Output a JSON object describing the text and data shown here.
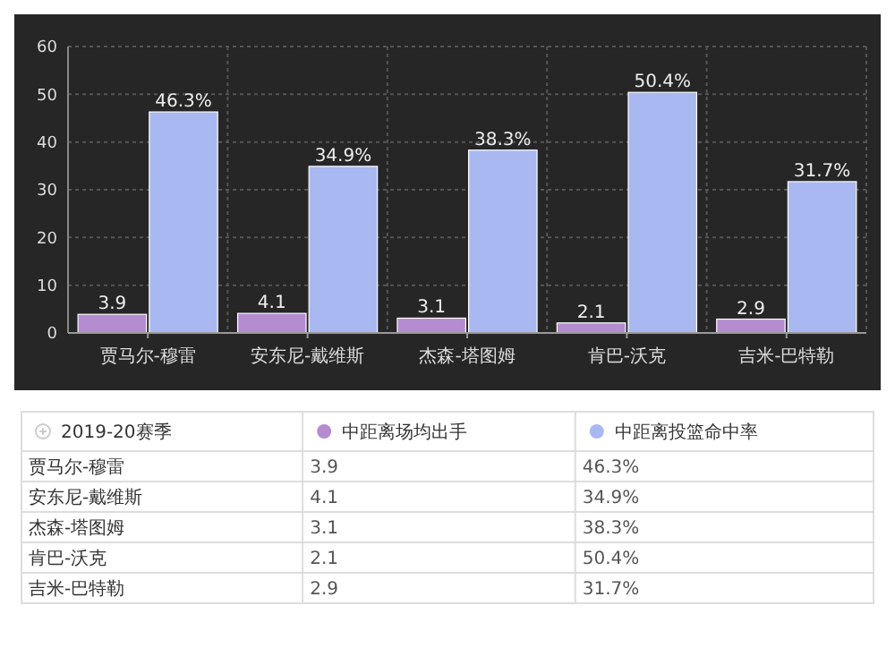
{
  "chart_data": {
    "type": "bar",
    "categories": [
      "贾马尔-穆雷",
      "安东尼-戴维斯",
      "杰森-塔图姆",
      "肯巴-沃克",
      "吉米-巴特勒"
    ],
    "series": [
      {
        "name": "中距离场均出手",
        "color": "#b48ccf",
        "values": [
          3.9,
          4.1,
          3.1,
          2.1,
          2.9
        ],
        "value_labels": [
          "3.9",
          "4.1",
          "3.1",
          "2.1",
          "2.9"
        ]
      },
      {
        "name": "中距离投篮命中率",
        "color": "#a9b8f0",
        "values": [
          46.3,
          34.9,
          38.3,
          50.4,
          31.7
        ],
        "value_labels": [
          "46.3%",
          "34.9%",
          "38.3%",
          "50.4%",
          "31.7%"
        ]
      }
    ],
    "legend_title": "2019-20赛季",
    "legend": "bottom",
    "ylim": [
      0,
      60
    ],
    "yticks": [
      0,
      10,
      20,
      30,
      40,
      50,
      60
    ],
    "grid": true
  }
}
